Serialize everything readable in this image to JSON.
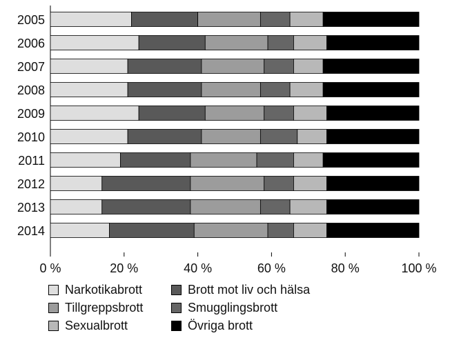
{
  "chart_data": {
    "type": "bar",
    "orientation": "horizontal",
    "stacked": true,
    "categories": [
      "2005",
      "2006",
      "2007",
      "2008",
      "2009",
      "2010",
      "2011",
      "2012",
      "2013",
      "2014"
    ],
    "series": [
      {
        "name": "Narkotikabrott",
        "values": [
          22,
          24,
          21,
          21,
          24,
          21,
          19,
          14,
          14,
          16
        ],
        "color": "#dedede"
      },
      {
        "name": "Brott mot liv och hälsa",
        "values": [
          18,
          18,
          20,
          20,
          18,
          20,
          19,
          24,
          24,
          23
        ],
        "color": "#595959"
      },
      {
        "name": "Tillgreppsbrott",
        "values": [
          17,
          17,
          17,
          16,
          16,
          16,
          18,
          20,
          19,
          20
        ],
        "color": "#9c9c9c"
      },
      {
        "name": "Smugglingsbrott",
        "values": [
          8,
          7,
          8,
          8,
          8,
          10,
          10,
          8,
          8,
          7
        ],
        "color": "#666666"
      },
      {
        "name": "Sexualbrott",
        "values": [
          9,
          9,
          8,
          9,
          9,
          8,
          8,
          9,
          10,
          9
        ],
        "color": "#b8b8b8"
      },
      {
        "name": "Övriga brott",
        "values": [
          26,
          25,
          26,
          26,
          25,
          25,
          26,
          25,
          25,
          25
        ],
        "color": "#000000"
      }
    ],
    "x_ticks": [
      "0 %",
      "20 %",
      "40 %",
      "60 %",
      "80 %",
      "100 %"
    ],
    "xlim": [
      0,
      100
    ],
    "grid": false,
    "legend_position": "bottom"
  }
}
